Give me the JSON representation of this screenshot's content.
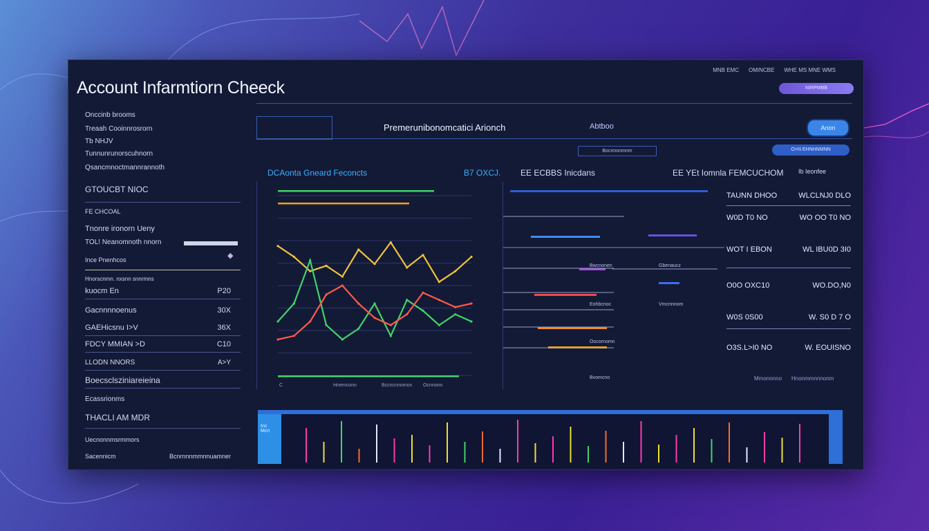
{
  "window": {
    "title": "Account Infarmtiorn  Cheeck",
    "topnav": [
      "MNB EMC",
      "OMINCBE",
      "WHE MS MNE WMS"
    ],
    "top_button": "NIRPMBB"
  },
  "sidebar": {
    "rows": [
      {
        "label": "Onccinb brooms",
        "value": ""
      },
      {
        "label": "Treaah Cooinnrosrorn",
        "value": ""
      },
      {
        "label": "Tb NHJV",
        "value": ""
      },
      {
        "label": "Tunnunrunorscuhnorn",
        "value": ""
      },
      {
        "label": "Qsancmnoctmannrannoth",
        "value": ""
      },
      {
        "label": "GTOUCBT   NIOC",
        "value": ""
      },
      {
        "label": "FE CHCOAL",
        "value": ""
      },
      {
        "label": "Tnonre ironorn Ueny",
        "value": ""
      },
      {
        "label": "TOL!  Neanomnoth nnorn",
        "value": ""
      },
      {
        "label": "Ince Pnenhcos",
        "value": ""
      },
      {
        "label": "Hnorscnmn. nxsnn snnrmns",
        "value": ""
      },
      {
        "label": "kuocm En",
        "value": "P20"
      },
      {
        "label": "Gacnnnnoenus",
        "value": "30X"
      },
      {
        "label": "GAEHicsnu I>V",
        "value": "36X"
      },
      {
        "label": "FDCY MMIAN >D",
        "value": "C10"
      },
      {
        "label": "LLODN NNORS",
        "value": "A>Y"
      },
      {
        "label": "Boecsclsziniareieina",
        "value": ""
      },
      {
        "label": "Ecassrionms",
        "value": ""
      },
      {
        "label": "THACLI AM MDR",
        "value": ""
      },
      {
        "label": "Uecnonnmsrmmors",
        "value": ""
      },
      {
        "label": "Sacennicm",
        "value": "Bcnrnnnmmnnuamner"
      }
    ]
  },
  "main": {
    "header_text": "Premerunibonomcatici Arionch",
    "header_secondary": "Abtboo",
    "header_button": "Anon",
    "sub_box": "Bocnnonmnm",
    "sub_button": "O>N EHNHNMNN",
    "sections": [
      {
        "title": "DCAonta Gneard Feconcts",
        "color": "#3ab0ff"
      },
      {
        "title": "B7 OXCJ.",
        "color": "#3ab0ff"
      },
      {
        "title": "EE ECBBS Inicdans",
        "color": "#d7dcf5"
      },
      {
        "title": "EE YEt Iomnla FEMCUCHOM",
        "color": "#d7dcf5"
      },
      {
        "title": "Ib Ieonfee",
        "color": "#d7dcf5"
      }
    ],
    "table": [
      [
        "TAUNN DHOO",
        "WLCLNJ0 DLO"
      ],
      [
        "W0D T0 NO",
        "WO OO T0 NO"
      ],
      [
        "WOT I EBON",
        "WL IBU0D 3I0"
      ],
      [
        "O0O OXC10",
        "WO.DO,N0"
      ],
      [
        "W0S 0S00",
        "W. S0 D 7 O"
      ],
      [
        "O3S.L>I0 NO",
        "W. EOUISNO"
      ]
    ],
    "chart_axis": [
      "C",
      "Hnemconn",
      "Bccncnnomon",
      "Ocnnonn"
    ],
    "mid_labels": [
      "Bwcnonen",
      "Gbenaucz",
      "Eohbcnoc",
      "Vmcnnnom",
      "Oocornomn",
      "Bvomcno"
    ],
    "footer_labels": [
      "Mmonnnno",
      "Hnonmmnnnonm"
    ],
    "bottom_label": "Inc\nMcn"
  },
  "chart_data": {
    "type": "line",
    "series": [
      {
        "name": "",
        "color": "#f0c23a",
        "values": [
          72,
          66,
          58,
          61,
          55,
          70,
          62,
          74,
          60,
          67,
          52,
          58,
          66
        ]
      },
      {
        "name": "",
        "color": "#43d36a",
        "values": [
          30,
          40,
          64,
          28,
          20,
          26,
          40,
          22,
          42,
          36,
          28,
          34,
          30
        ]
      },
      {
        "name": "",
        "color": "#ff5a4a",
        "values": [
          20,
          22,
          30,
          45,
          50,
          40,
          32,
          28,
          34,
          46,
          42,
          38,
          40
        ]
      }
    ],
    "grid": true
  }
}
